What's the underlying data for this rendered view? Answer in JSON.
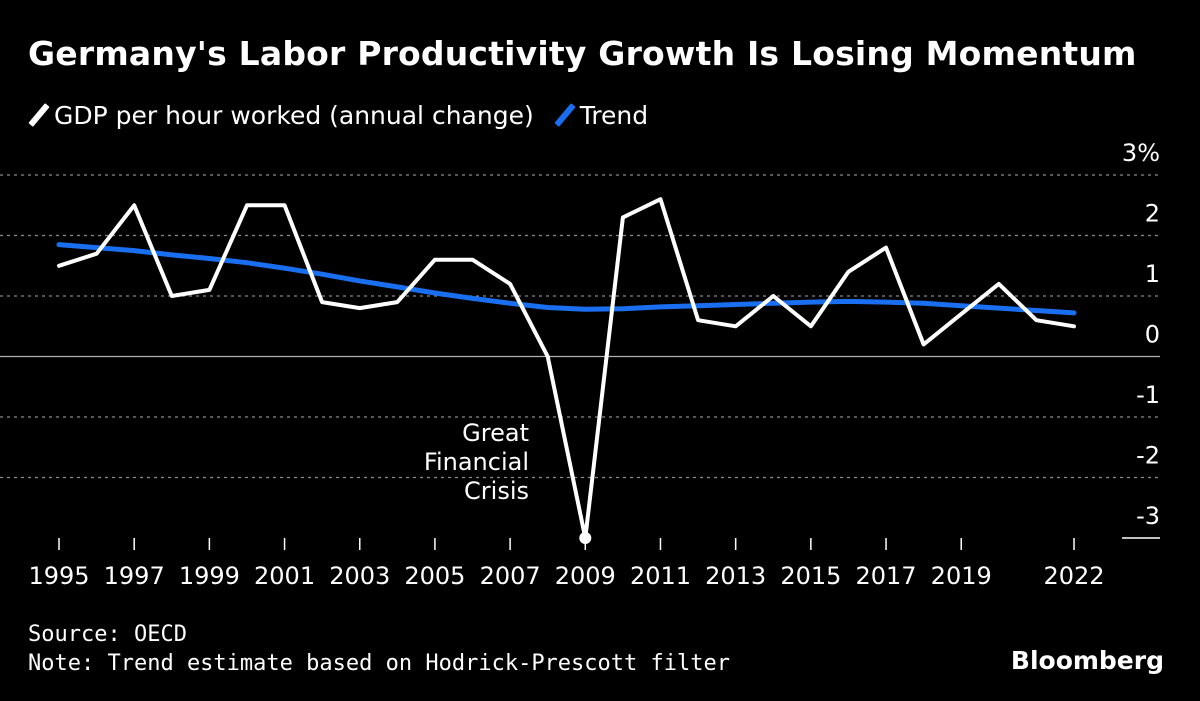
{
  "title": "Germany's Labor Productivity Growth Is Losing Momentum",
  "legend": [
    {
      "label": "GDP per hour worked (annual change)",
      "color": "#ffffff"
    },
    {
      "label": "Trend",
      "color": "#1a6ff0"
    }
  ],
  "source": "Source: OECD",
  "note": "Note: Trend estimate based on Hodrick-Prescott filter",
  "brand": "Bloomberg",
  "chart_data": {
    "type": "line",
    "x": [
      1995,
      1996,
      1997,
      1998,
      1999,
      2000,
      2001,
      2002,
      2003,
      2004,
      2005,
      2006,
      2007,
      2008,
      2009,
      2010,
      2011,
      2012,
      2013,
      2014,
      2015,
      2016,
      2017,
      2018,
      2019,
      2020,
      2021,
      2022
    ],
    "series": [
      {
        "name": "GDP per hour worked (annual change)",
        "color": "#ffffff",
        "values": [
          1.5,
          1.7,
          2.5,
          1.0,
          1.1,
          2.5,
          2.5,
          0.9,
          0.8,
          0.9,
          1.6,
          1.6,
          1.2,
          0.0,
          -3.0,
          2.3,
          2.6,
          0.6,
          0.5,
          1.0,
          0.5,
          1.4,
          1.8,
          0.2,
          0.7,
          1.2,
          0.6,
          0.5
        ]
      },
      {
        "name": "Trend",
        "color": "#1a6ff0",
        "values": [
          1.85,
          1.8,
          1.75,
          1.68,
          1.62,
          1.55,
          1.46,
          1.36,
          1.25,
          1.15,
          1.05,
          0.96,
          0.88,
          0.81,
          0.78,
          0.79,
          0.82,
          0.84,
          0.86,
          0.88,
          0.9,
          0.91,
          0.9,
          0.88,
          0.84,
          0.8,
          0.76,
          0.72
        ]
      }
    ],
    "x_ticks": [
      "1995",
      "1997",
      "1999",
      "2001",
      "2003",
      "2005",
      "2007",
      "2009",
      "2011",
      "2013",
      "2015",
      "2017",
      "2019",
      "2022"
    ],
    "x_tick_years": [
      1995,
      1997,
      1999,
      2001,
      2003,
      2005,
      2007,
      2009,
      2011,
      2013,
      2015,
      2017,
      2019,
      2022
    ],
    "y_ticks": [
      3,
      2,
      1,
      0,
      -1,
      -2,
      -3
    ],
    "y_tick_labels": [
      "3%",
      "2",
      "1",
      "0",
      "-1",
      "-2",
      "-3"
    ],
    "ylim": [
      -3,
      3
    ],
    "xlim": [
      1995,
      2022
    ],
    "annotation": {
      "lines": [
        "Great",
        "Financial",
        "Crisis"
      ],
      "year": 2009,
      "value": -3.0
    },
    "grid": true
  }
}
